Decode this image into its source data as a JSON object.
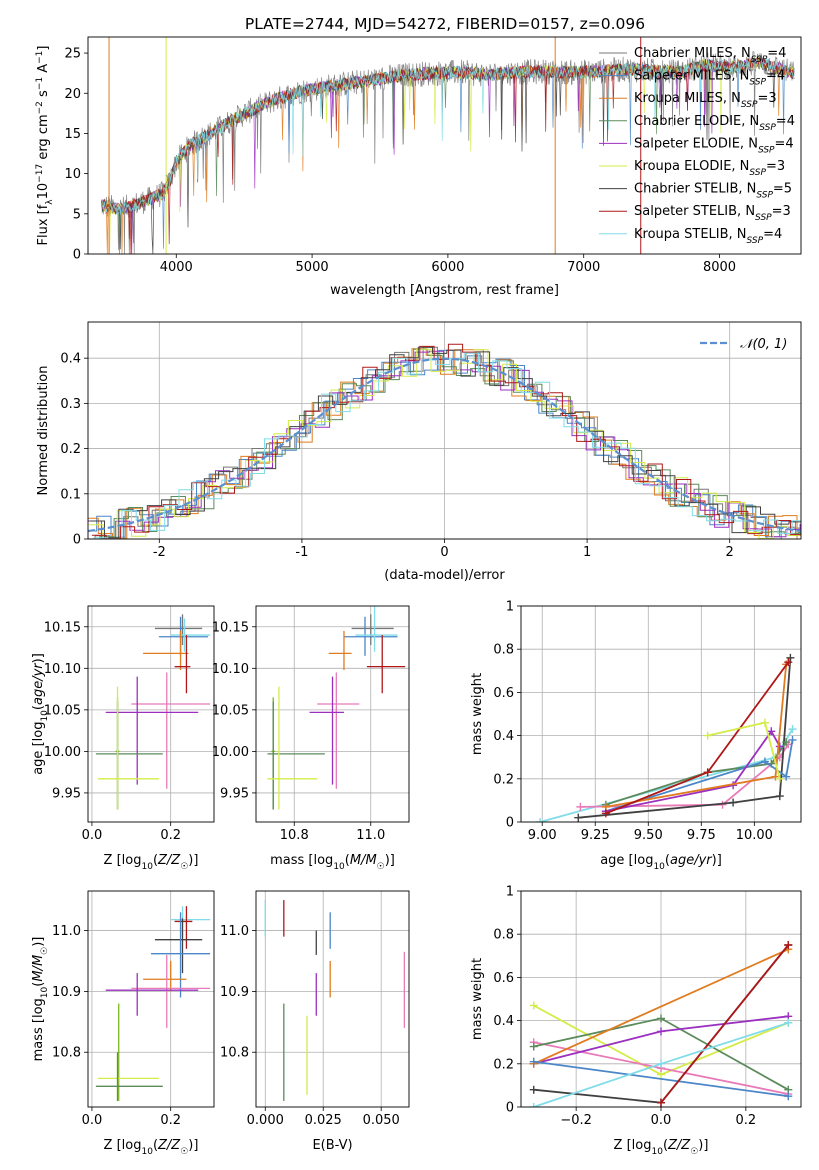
{
  "figure_title": "PLATE=2744, MJD=54272, FIBERID=0157, z=0.096",
  "colors": {
    "Chabrier MILES": "#777777",
    "Salpeter MILES": "#4a86c8",
    "Kroupa MILES": "#e07b1f",
    "Chabrier ELODIE": "#5b8a5b",
    "Salpeter ELODIE": "#9b30c0",
    "Kroupa ELODIE": "#d4ec48",
    "Chabrier STELIB": "#404040",
    "Salpeter STELIB": "#b01818",
    "Kroupa STELIB": "#80dce8",
    "Kroupa ELODIE (lime)": "#7ab81e",
    "Salpeter ELODIE (pink)": "#e87ab8",
    "normal": "#5b8fd0"
  },
  "chart_data": [
    {
      "id": "spectrum",
      "type": "line",
      "title": "PLATE=2744, MJD=54272, FIBERID=0157, z=0.096",
      "xlabel": "wavelength [Angstrom, rest frame]",
      "ylabel": "Flux [f_λ 10^-17 erg cm^-2 s^-1 A^-1]",
      "xlim": [
        3350,
        8600
      ],
      "ylim": [
        0,
        27
      ],
      "xticks": [
        4000,
        5000,
        6000,
        7000,
        8000
      ],
      "yticks": [
        0,
        5,
        10,
        15,
        20,
        25
      ],
      "legend_position": "upper right",
      "legend": [
        {
          "label": "Chabrier MILES, N_SSP=4",
          "color": "#777777"
        },
        {
          "label": "Salpeter MILES, N_SSP=4",
          "color": "#4a86c8"
        },
        {
          "label": "Kroupa MILES, N_SSP=3",
          "color": "#e07b1f"
        },
        {
          "label": "Chabrier ELODIE, N_SSP=4",
          "color": "#5b8a5b"
        },
        {
          "label": "Salpeter ELODIE, N_SSP=4",
          "color": "#9b30c0"
        },
        {
          "label": "Kroupa ELODIE, N_SSP=3",
          "color": "#d4ec48"
        },
        {
          "label": "Chabrier STELIB, N_SSP=5",
          "color": "#404040"
        },
        {
          "label": "Salpeter STELIB, N_SSP=3",
          "color": "#b01818"
        },
        {
          "label": "Kroupa STELIB, N_SSP=4",
          "color": "#80dce8"
        }
      ],
      "continuum": {
        "x": [
          3450,
          3600,
          3800,
          3900,
          3950,
          4000,
          4100,
          4300,
          4500,
          4700,
          4900,
          5100,
          5300,
          5500,
          5700,
          5900,
          6100,
          6300,
          6500,
          6700,
          6900,
          7100,
          7300,
          7500,
          7700,
          7900,
          8100,
          8300,
          8550
        ],
        "y": [
          6.0,
          5.6,
          6.8,
          7.5,
          9.0,
          11.5,
          13.5,
          15.5,
          17.5,
          19.0,
          20.2,
          20.8,
          21.3,
          21.8,
          22.3,
          22.5,
          22.6,
          22.3,
          22.6,
          22.7,
          22.6,
          22.7,
          23.0,
          22.8,
          22.6,
          23.5,
          23.2,
          23.8,
          22.5
        ]
      },
      "spikes": [
        {
          "x": 3505,
          "y": 0,
          "color": "#e07b1f"
        },
        {
          "x": 3925,
          "y": 0,
          "color": "#d4ec48"
        },
        {
          "x": 6790,
          "y": 0,
          "color": "#e07b1f"
        },
        {
          "x": 7420,
          "y": 0,
          "color": "#b01818"
        }
      ]
    },
    {
      "id": "residuals",
      "type": "bar",
      "xlabel": "(data-model)/error",
      "ylabel": "Normed distribution",
      "xlim": [
        -2.5,
        2.5
      ],
      "ylim": [
        0,
        0.48
      ],
      "xticks": [
        -2,
        -1,
        0,
        1,
        2
      ],
      "yticks": [
        0.0,
        0.1,
        0.2,
        0.3,
        0.4
      ],
      "legend": [
        {
          "label": "𝒩(0, 1)",
          "color": "#5b8fd0",
          "style": "dashed"
        }
      ],
      "legend_position": "upper right",
      "bin_width": 0.1,
      "histogram_series": 9
    },
    {
      "id": "age_vs_Z",
      "type": "scatter",
      "xlabel": "Z [log10(Z/Z☉)]",
      "ylabel": "age [log10(age/yr)]",
      "xlim": [
        -0.01,
        0.31
      ],
      "ylim": [
        9.915,
        10.175
      ],
      "xticks": [
        0.0,
        0.2
      ],
      "xticklabels": [
        "0.0",
        "0.2"
      ],
      "yticks": [
        9.95,
        10.0,
        10.05,
        10.1,
        10.15
      ],
      "yticklabels": [
        "9.95",
        "10.00",
        "10.05",
        "10.10",
        "10.15"
      ],
      "points": [
        {
          "color": "#777777",
          "x": 0.23,
          "xerr": [
            0.16,
            0.28
          ],
          "y": 10.148,
          "yerr": [
            10.128,
            10.165
          ]
        },
        {
          "color": "#4a86c8",
          "x": 0.225,
          "xerr": [
            0.17,
            0.295
          ],
          "y": 10.138,
          "yerr": [
            10.115,
            10.162
          ]
        },
        {
          "color": "#80dce8",
          "x": 0.235,
          "xerr": [
            0.2,
            0.3
          ],
          "y": 10.14,
          "yerr": [
            10.12,
            10.16
          ]
        },
        {
          "color": "#e07b1f",
          "x": 0.225,
          "xerr": [
            0.13,
            0.245
          ],
          "y": 10.118,
          "yerr": [
            10.098,
            10.145
          ]
        },
        {
          "color": "#b01818",
          "x": 0.24,
          "xerr": [
            0.21,
            0.25
          ],
          "y": 10.102,
          "yerr": [
            10.07,
            10.14
          ]
        },
        {
          "color": "#e87ab8",
          "x": 0.19,
          "xerr": [
            0.1,
            0.3
          ],
          "y": 10.057,
          "yerr": [
            9.955,
            10.095
          ]
        },
        {
          "color": "#9b30c0",
          "x": 0.115,
          "xerr": [
            0.035,
            0.27
          ],
          "y": 10.047,
          "yerr": [
            9.96,
            10.09
          ]
        },
        {
          "color": "#7ab81e",
          "x": 0.065,
          "xerr": [
            0.06,
            0.07
          ],
          "y": 10.0,
          "yerr": [
            9.93,
            10.065
          ]
        },
        {
          "color": "#5b8a5b",
          "x": 0.065,
          "xerr": [
            0.01,
            0.18
          ],
          "y": 9.997,
          "yerr": [
            9.93,
            10.06
          ]
        },
        {
          "color": "#d4ec48",
          "x": 0.065,
          "xerr": [
            0.015,
            0.17
          ],
          "y": 9.967,
          "yerr": [
            9.93,
            10.078
          ]
        }
      ]
    },
    {
      "id": "age_vs_mass",
      "type": "scatter",
      "xlabel": "mass [log10(M/M☉)]",
      "ylabel": "",
      "xlim": [
        10.7,
        11.1
      ],
      "ylim": [
        9.915,
        10.175
      ],
      "xticks": [
        10.8,
        11.0
      ],
      "xticklabels": [
        "10.8",
        "11.0"
      ],
      "yticks": [
        9.95,
        10.0,
        10.05,
        10.1,
        10.15
      ],
      "yticklabels": [
        "9.95",
        "10.00",
        "10.05",
        "10.10",
        "10.15"
      ],
      "points": [
        {
          "color": "#777777",
          "x": 11.0,
          "xerr": [
            10.95,
            11.06
          ],
          "y": 10.148,
          "yerr": [
            10.128,
            10.165
          ]
        },
        {
          "color": "#4a86c8",
          "x": 10.985,
          "xerr": [
            10.93,
            11.07
          ],
          "y": 10.138,
          "yerr": [
            10.115,
            10.162
          ]
        },
        {
          "color": "#80dce8",
          "x": 11.01,
          "xerr": [
            10.96,
            11.07
          ],
          "y": 10.14,
          "yerr": [
            10.12,
            11.16
          ]
        },
        {
          "color": "#e07b1f",
          "x": 10.93,
          "xerr": [
            10.89,
            10.95
          ],
          "y": 10.118,
          "yerr": [
            10.098,
            10.145
          ]
        },
        {
          "color": "#b01818",
          "x": 11.03,
          "xerr": [
            10.99,
            11.09
          ],
          "y": 10.102,
          "yerr": [
            10.07,
            10.14
          ]
        },
        {
          "color": "#e87ab8",
          "x": 10.91,
          "xerr": [
            10.86,
            10.97
          ],
          "y": 10.057,
          "yerr": [
            9.955,
            10.095
          ]
        },
        {
          "color": "#9b30c0",
          "x": 10.9,
          "xerr": [
            10.84,
            10.93
          ],
          "y": 10.047,
          "yerr": [
            9.96,
            10.09
          ]
        },
        {
          "color": "#7ab81e",
          "x": 10.745,
          "xerr": [
            10.74,
            10.75
          ],
          "y": 10.0,
          "yerr": [
            9.93,
            10.065
          ]
        },
        {
          "color": "#5b8a5b",
          "x": 10.745,
          "xerr": [
            10.73,
            10.88
          ],
          "y": 9.997,
          "yerr": [
            9.93,
            10.06
          ]
        },
        {
          "color": "#d4ec48",
          "x": 10.76,
          "xerr": [
            10.73,
            10.86
          ],
          "y": 9.967,
          "yerr": [
            9.93,
            10.078
          ]
        }
      ]
    },
    {
      "id": "mass_vs_Z",
      "type": "scatter",
      "xlabel": "Z [log10(Z/Z☉)]",
      "ylabel": "mass [log10(M/M☉)]",
      "xlim": [
        -0.01,
        0.31
      ],
      "ylim": [
        10.71,
        11.065
      ],
      "xticks": [
        0.0,
        0.2
      ],
      "xticklabels": [
        "0.0",
        "0.2"
      ],
      "yticks": [
        10.8,
        10.9,
        11.0
      ],
      "yticklabels": [
        "10.8",
        "10.9",
        "11.0"
      ],
      "points": [
        {
          "color": "#80dce8",
          "x": 0.23,
          "xerr": [
            0.2,
            0.3
          ],
          "y": 11.018,
          "yerr": [
            10.99,
            11.04
          ]
        },
        {
          "color": "#b01818",
          "x": 0.24,
          "xerr": [
            0.21,
            0.255
          ],
          "y": 11.015,
          "yerr": [
            10.97,
            11.04
          ]
        },
        {
          "color": "#404040",
          "x": 0.23,
          "xerr": [
            0.16,
            0.28
          ],
          "y": 10.985,
          "yerr": [
            10.93,
            11.02
          ]
        },
        {
          "color": "#4a86c8",
          "x": 0.225,
          "xerr": [
            0.15,
            0.3
          ],
          "y": 10.962,
          "yerr": [
            10.89,
            11.03
          ]
        },
        {
          "color": "#e07b1f",
          "x": 0.2,
          "xerr": [
            0.13,
            0.24
          ],
          "y": 10.92,
          "yerr": [
            10.9,
            10.95
          ]
        },
        {
          "color": "#e87ab8",
          "x": 0.19,
          "xerr": [
            0.1,
            0.3
          ],
          "y": 10.905,
          "yerr": [
            10.84,
            10.96
          ]
        },
        {
          "color": "#9b30c0",
          "x": 0.115,
          "xerr": [
            0.035,
            0.27
          ],
          "y": 10.902,
          "yerr": [
            10.86,
            10.93
          ]
        },
        {
          "color": "#7ab81e",
          "x": 0.068,
          "xerr": [
            0.066,
            0.07
          ],
          "y": 10.8,
          "yerr": [
            10.72,
            10.88
          ]
        },
        {
          "color": "#d4ec48",
          "x": 0.065,
          "xerr": [
            0.015,
            0.17
          ],
          "y": 10.757,
          "yerr": [
            10.72,
            10.8
          ]
        },
        {
          "color": "#5b8a5b",
          "x": 0.065,
          "xerr": [
            0.01,
            0.18
          ],
          "y": 10.744,
          "yerr": [
            10.72,
            10.8
          ]
        }
      ]
    },
    {
      "id": "mass_vs_EBV",
      "type": "scatter",
      "xlabel": "E(B-V)",
      "ylabel": "",
      "xlim": [
        -0.004,
        0.062
      ],
      "ylim": [
        10.71,
        11.065
      ],
      "xticks": [
        0.0,
        0.025,
        0.05
      ],
      "xticklabels": [
        "0.000",
        "0.025",
        "0.050"
      ],
      "yticks": [
        10.8,
        10.9,
        11.0
      ],
      "yticklabels": [
        "10.8",
        "10.9",
        "11.0"
      ],
      "points": [
        {
          "color": "#80dce8",
          "x": 0.0,
          "y": 11.02,
          "yerr": [
            10.99,
            11.05
          ]
        },
        {
          "color": "#b01818",
          "x": 0.008,
          "y": 11.0,
          "yerr": [
            10.99,
            11.05
          ]
        },
        {
          "color": "#404040",
          "x": 0.022,
          "y": 10.985,
          "yerr": [
            10.96,
            11.0
          ]
        },
        {
          "color": "#4a86c8",
          "x": 0.028,
          "y": 11.0,
          "yerr": [
            10.97,
            11.03
          ]
        },
        {
          "color": "#e07b1f",
          "x": 0.028,
          "y": 10.92,
          "yerr": [
            10.89,
            10.95
          ]
        },
        {
          "color": "#e87ab8",
          "x": 0.06,
          "y": 10.9,
          "yerr": [
            10.84,
            10.965
          ]
        },
        {
          "color": "#9b30c0",
          "x": 0.022,
          "y": 10.9,
          "yerr": [
            10.86,
            10.93
          ]
        },
        {
          "color": "#d4ec48",
          "x": 0.018,
          "y": 10.8,
          "yerr": [
            10.73,
            10.86
          ]
        },
        {
          "color": "#5b8a5b",
          "x": 0.008,
          "y": 10.8,
          "yerr": [
            10.72,
            10.88
          ]
        }
      ]
    },
    {
      "id": "mass_weight_vs_age",
      "type": "line",
      "xlabel": "age [log10(age/yr)]",
      "ylabel": "mass weight",
      "xlim": [
        8.9,
        10.22
      ],
      "ylim": [
        0,
        1.0
      ],
      "xticks": [
        9.0,
        9.25,
        9.5,
        9.75,
        10.0
      ],
      "xticklabels": [
        "9.00",
        "9.25",
        "9.50",
        "9.75",
        "10.00"
      ],
      "yticks": [
        0.0,
        0.2,
        0.4,
        0.6,
        0.8,
        1.0
      ],
      "series": [
        {
          "color": "#80dce8",
          "x": [
            8.99,
            10.1,
            10.18
          ],
          "y": [
            0.0,
            0.3,
            0.43
          ]
        },
        {
          "color": "#e87ab8",
          "x": [
            9.18,
            9.85,
            10.12,
            10.16
          ],
          "y": [
            0.07,
            0.08,
            0.3,
            0.36
          ]
        },
        {
          "color": "#404040",
          "x": [
            9.17,
            9.9,
            10.12,
            10.17
          ],
          "y": [
            0.02,
            0.09,
            0.12,
            0.76
          ]
        },
        {
          "color": "#5b8a5b",
          "x": [
            9.3,
            9.78,
            10.08,
            10.15
          ],
          "y": [
            0.08,
            0.23,
            0.27,
            0.37
          ]
        },
        {
          "color": "#4a86c8",
          "x": [
            9.3,
            10.05,
            10.15,
            10.18
          ],
          "y": [
            0.05,
            0.28,
            0.21,
            0.38
          ]
        },
        {
          "color": "#9b30c0",
          "x": [
            9.3,
            9.9,
            10.08,
            10.12
          ],
          "y": [
            0.05,
            0.17,
            0.42,
            0.35
          ]
        },
        {
          "color": "#e07b1f",
          "x": [
            9.3,
            10.1,
            10.15
          ],
          "y": [
            0.07,
            0.21,
            0.73
          ]
        },
        {
          "color": "#b01818",
          "x": [
            9.3,
            9.78,
            10.16
          ],
          "y": [
            0.04,
            0.23,
            0.74
          ]
        },
        {
          "color": "#d4ec48",
          "x": [
            9.78,
            10.05,
            10.12
          ],
          "y": [
            0.4,
            0.46,
            0.2
          ]
        }
      ]
    },
    {
      "id": "mass_weight_vs_Z",
      "type": "line",
      "xlabel": "Z [log10(Z/Z☉)]",
      "ylabel": "mass weight",
      "xlim": [
        -0.33,
        0.33
      ],
      "ylim": [
        0,
        1.0
      ],
      "xticks": [
        -0.2,
        0.0,
        0.2
      ],
      "xticklabels": [
        "−0.2",
        "0.0",
        "0.2"
      ],
      "yticks": [
        0.0,
        0.2,
        0.4,
        0.6,
        0.8,
        1.0
      ],
      "series": [
        {
          "color": "#d4ec48",
          "x": [
            -0.3,
            0.0,
            0.3
          ],
          "y": [
            0.47,
            0.15,
            0.39
          ]
        },
        {
          "color": "#e87ab8",
          "x": [
            -0.3,
            0.0,
            0.3
          ],
          "y": [
            0.3,
            0.18,
            0.06
          ]
        },
        {
          "color": "#5b8a5b",
          "x": [
            -0.3,
            0.0,
            0.3
          ],
          "y": [
            0.28,
            0.41,
            0.08
          ]
        },
        {
          "color": "#9b30c0",
          "x": [
            -0.3,
            0.0,
            0.3
          ],
          "y": [
            0.2,
            0.35,
            0.42
          ]
        },
        {
          "color": "#e07b1f",
          "x": [
            -0.3,
            0.3
          ],
          "y": [
            0.2,
            0.73
          ]
        },
        {
          "color": "#4a86c8",
          "x": [
            -0.3,
            0.3
          ],
          "y": [
            0.21,
            0.05
          ]
        },
        {
          "color": "#404040",
          "x": [
            -0.3,
            0.0,
            0.3
          ],
          "y": [
            0.08,
            0.02,
            0.75
          ]
        },
        {
          "color": "#b01818",
          "x": [
            0.0,
            0.3
          ],
          "y": [
            0.02,
            0.75
          ]
        },
        {
          "color": "#80dce8",
          "x": [
            -0.3,
            0.0,
            0.3
          ],
          "y": [
            0.0,
            0.2,
            0.39
          ]
        }
      ]
    }
  ]
}
